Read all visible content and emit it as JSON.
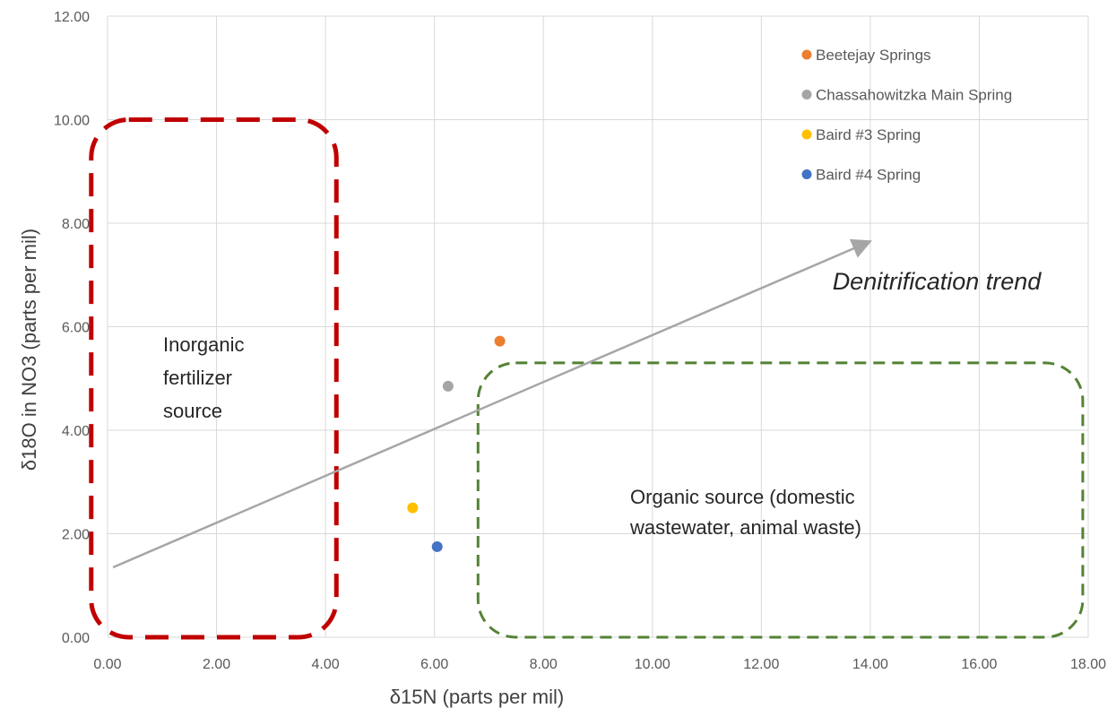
{
  "chart_data": {
    "type": "scatter",
    "xlabel": "δ15N (parts per mil)",
    "ylabel": "δ18O in NO3 (parts per mil)",
    "xlim": [
      0,
      18
    ],
    "ylim": [
      0,
      12
    ],
    "x_ticks": [
      "0.00",
      "2.00",
      "4.00",
      "6.00",
      "8.00",
      "10.00",
      "12.00",
      "14.00",
      "16.00",
      "18.00"
    ],
    "y_ticks": [
      "0.00",
      "2.00",
      "4.00",
      "6.00",
      "8.00",
      "10.00",
      "12.00"
    ],
    "grid": "vertical and horizontal",
    "legend_position": "top-right",
    "series": [
      {
        "name": "Beetejay Springs",
        "color": "#ED7D31",
        "points": [
          {
            "x": 7.2,
            "y": 5.72
          }
        ]
      },
      {
        "name": "Chassahowitzka Main Spring",
        "color": "#A5A5A5",
        "points": [
          {
            "x": 6.25,
            "y": 4.85
          }
        ]
      },
      {
        "name": "Baird #3 Spring",
        "color": "#FFC000",
        "points": [
          {
            "x": 5.6,
            "y": 2.5
          }
        ]
      },
      {
        "name": "Baird #4 Spring",
        "color": "#4472C4",
        "points": [
          {
            "x": 6.05,
            "y": 1.75
          }
        ]
      }
    ],
    "annotations": {
      "trend_arrow": {
        "label": "Denitrification trend",
        "from": {
          "x": 0.1,
          "y": 1.35
        },
        "to": {
          "x": 14.0,
          "y": 7.65
        },
        "color": "#A6A6A6"
      },
      "inorganic_region": {
        "label_lines": [
          "Inorganic",
          "fertilizer",
          "source"
        ],
        "x_range": [
          -0.3,
          4.2
        ],
        "y_range": [
          0,
          10
        ],
        "color": "#C00000"
      },
      "organic_region": {
        "label_lines": [
          "Organic source (domestic",
          "wastewater, animal waste)"
        ],
        "x_range": [
          6.8,
          17.9
        ],
        "y_range": [
          0,
          5.3
        ],
        "color": "#548235"
      }
    }
  }
}
